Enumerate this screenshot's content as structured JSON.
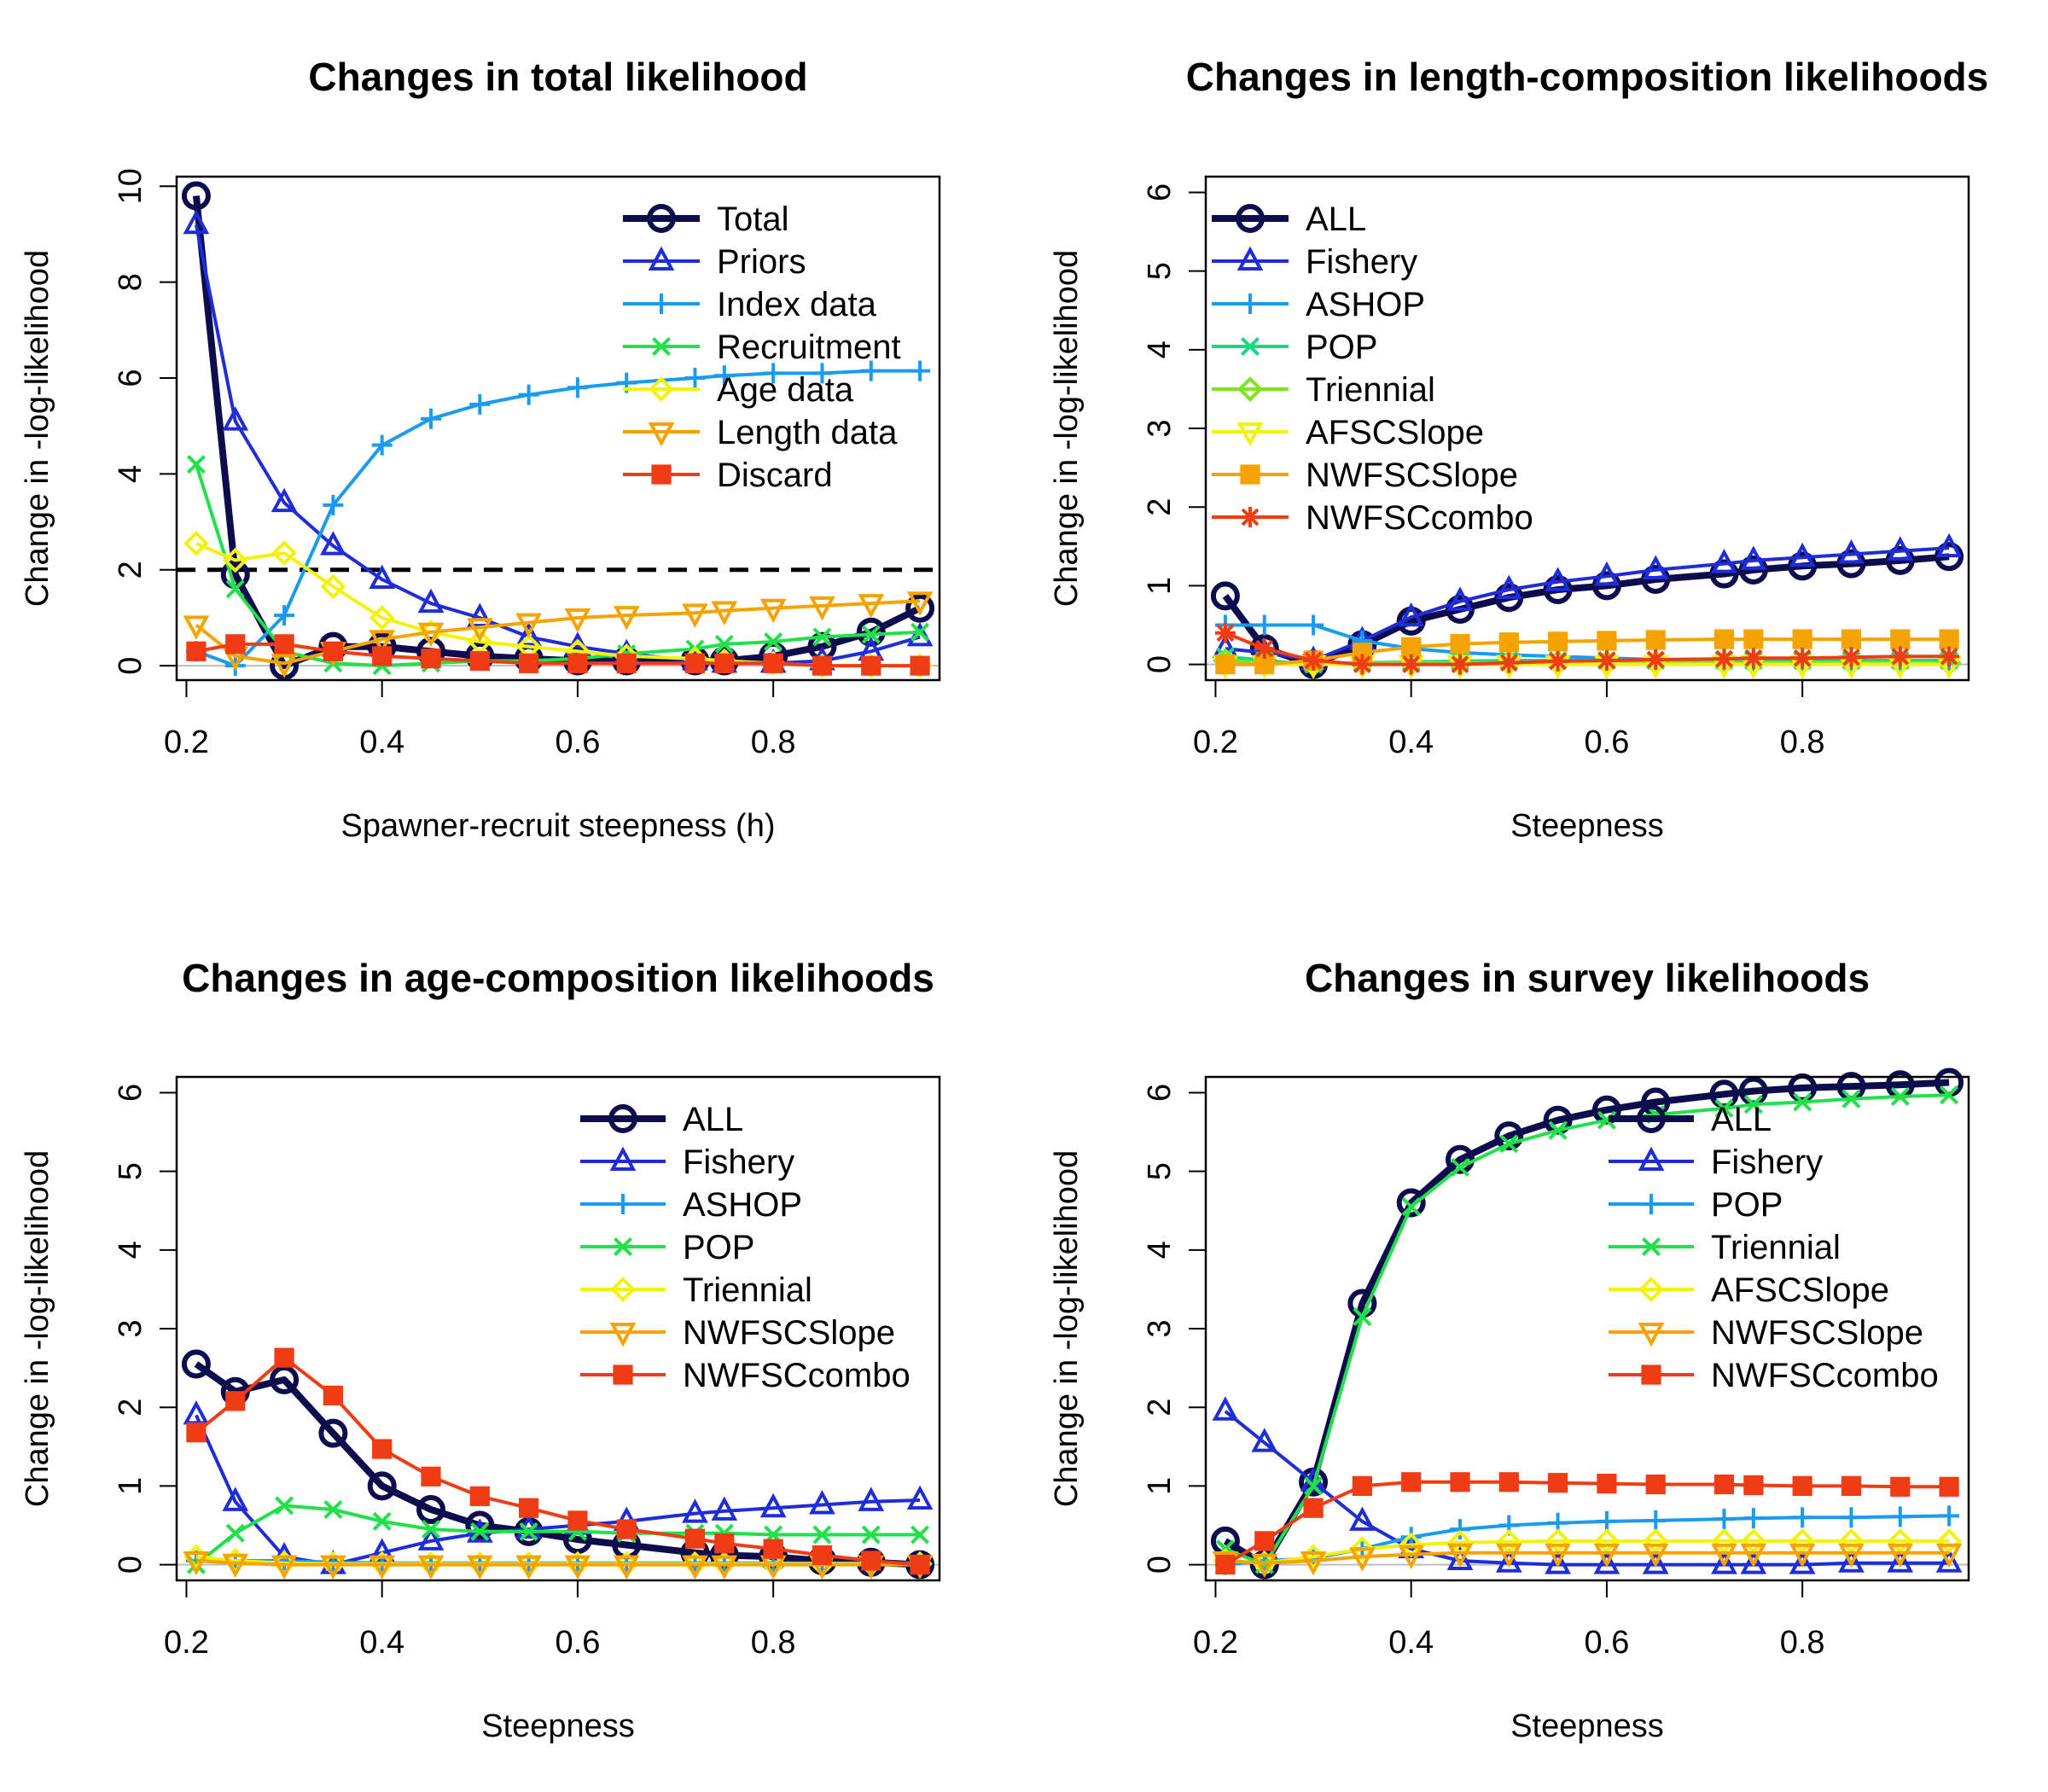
{
  "chart_data": [
    {
      "type": "line",
      "title": "Changes in total likelihood",
      "xlabel": "Spawner-recruit steepness (h)",
      "ylabel": "Change in -log-likelihood",
      "xlim": [
        0.19,
        0.97
      ],
      "ylim": [
        -0.3,
        10.2
      ],
      "xticks": [
        "0.2",
        "0.4",
        "0.6",
        "0.8"
      ],
      "yticks": [
        "0",
        "2",
        "4",
        "6",
        "8",
        "10"
      ],
      "legend_position": "top-right",
      "reference_line": 2,
      "x": [
        0.21,
        0.25,
        0.3,
        0.35,
        0.4,
        0.45,
        0.5,
        0.55,
        0.6,
        0.65,
        0.72,
        0.75,
        0.8,
        0.85,
        0.9,
        0.95
      ],
      "series": [
        {
          "name": "Total",
          "color": "#0d0d4d",
          "marker": "circle",
          "width": 8,
          "values": [
            9.8,
            1.9,
            0.0,
            0.4,
            0.4,
            0.3,
            0.2,
            0.15,
            0.1,
            0.1,
            0.1,
            0.1,
            0.2,
            0.4,
            0.7,
            1.2
          ]
        },
        {
          "name": "Priors",
          "color": "#1f2cd9",
          "marker": "triangle",
          "width": 4,
          "values": [
            9.2,
            5.1,
            3.4,
            2.5,
            1.8,
            1.3,
            1.0,
            0.6,
            0.4,
            0.25,
            0.1,
            0.05,
            0.05,
            0.1,
            0.3,
            0.6
          ]
        },
        {
          "name": "Index data",
          "color": "#1a9bf0",
          "marker": "plus",
          "width": 4,
          "values": [
            0.3,
            0.0,
            1.05,
            3.35,
            4.6,
            5.15,
            5.45,
            5.65,
            5.8,
            5.9,
            6.0,
            6.05,
            6.1,
            6.1,
            6.15,
            6.15
          ]
        },
        {
          "name": "Recruitment",
          "color": "#22e04a",
          "marker": "x",
          "width": 4,
          "values": [
            4.2,
            1.6,
            0.3,
            0.05,
            0.0,
            0.05,
            0.1,
            0.1,
            0.15,
            0.25,
            0.35,
            0.45,
            0.5,
            0.6,
            0.65,
            0.7
          ]
        },
        {
          "name": "Age data",
          "color": "#f2f20f",
          "marker": "diamond",
          "width": 4,
          "values": [
            2.55,
            2.2,
            2.35,
            1.65,
            1.0,
            0.7,
            0.5,
            0.4,
            0.3,
            0.2,
            0.15,
            0.1,
            0.05,
            0.0,
            0.0,
            0.0
          ]
        },
        {
          "name": "Length data",
          "color": "#f5a300",
          "marker": "triangle-down",
          "width": 4,
          "values": [
            0.85,
            0.2,
            0.05,
            0.3,
            0.55,
            0.7,
            0.8,
            0.9,
            1.0,
            1.05,
            1.1,
            1.15,
            1.2,
            1.25,
            1.3,
            1.35
          ]
        },
        {
          "name": "Discard",
          "color": "#f03c14",
          "marker": "square",
          "width": 4,
          "values": [
            0.3,
            0.45,
            0.45,
            0.3,
            0.2,
            0.15,
            0.1,
            0.05,
            0.05,
            0.05,
            0.05,
            0.05,
            0.05,
            0.0,
            0.0,
            0.0
          ]
        }
      ]
    },
    {
      "type": "line",
      "title": "Changes in length-composition likelihoods",
      "xlabel": "Steepness",
      "ylabel": "Change in -log-likelihood",
      "xlim": [
        0.19,
        0.97
      ],
      "ylim": [
        -0.2,
        6.2
      ],
      "xticks": [
        "0.2",
        "0.4",
        "0.6",
        "0.8"
      ],
      "yticks": [
        "0",
        "1",
        "2",
        "3",
        "4",
        "5",
        "6"
      ],
      "legend_position": "top-left",
      "x": [
        0.21,
        0.25,
        0.3,
        0.35,
        0.4,
        0.45,
        0.5,
        0.55,
        0.6,
        0.65,
        0.72,
        0.75,
        0.8,
        0.85,
        0.9,
        0.95
      ],
      "series": [
        {
          "name": "ALL",
          "color": "#0d0d4d",
          "marker": "circle",
          "width": 8,
          "values": [
            0.87,
            0.2,
            0.0,
            0.25,
            0.55,
            0.7,
            0.85,
            0.95,
            1.0,
            1.08,
            1.15,
            1.2,
            1.25,
            1.28,
            1.32,
            1.37
          ]
        },
        {
          "name": "Fishery",
          "color": "#1f2cd9",
          "marker": "triangle",
          "width": 4,
          "values": [
            0.2,
            0.15,
            0.05,
            0.3,
            0.6,
            0.8,
            0.95,
            1.05,
            1.12,
            1.2,
            1.28,
            1.32,
            1.36,
            1.4,
            1.44,
            1.48
          ]
        },
        {
          "name": "ASHOP",
          "color": "#1a9bf0",
          "marker": "plus",
          "width": 4,
          "values": [
            0.5,
            0.5,
            0.5,
            0.3,
            0.2,
            0.15,
            0.12,
            0.1,
            0.08,
            0.06,
            0.05,
            0.04,
            0.03,
            0.02,
            0.02,
            0.02
          ]
        },
        {
          "name": "POP",
          "color": "#17d982",
          "marker": "x",
          "width": 4,
          "values": [
            0.1,
            0.05,
            0.0,
            0.02,
            0.03,
            0.04,
            0.05,
            0.05,
            0.05,
            0.05,
            0.05,
            0.05,
            0.05,
            0.05,
            0.05,
            0.05
          ]
        },
        {
          "name": "Triennial",
          "color": "#7ee620",
          "marker": "diamond",
          "width": 4,
          "values": [
            0.05,
            0.02,
            0.0,
            0.01,
            0.02,
            0.02,
            0.02,
            0.02,
            0.02,
            0.02,
            0.02,
            0.02,
            0.02,
            0.02,
            0.02,
            0.02
          ]
        },
        {
          "name": "AFSCSlope",
          "color": "#f2f20f",
          "marker": "triangle-down",
          "width": 4,
          "values": [
            0.0,
            0.0,
            0.0,
            0.0,
            0.0,
            0.0,
            0.0,
            0.0,
            0.0,
            0.0,
            0.0,
            0.0,
            0.0,
            0.0,
            0.0,
            0.0
          ]
        },
        {
          "name": "NWFSCSlope",
          "color": "#f5a300",
          "marker": "square",
          "width": 4,
          "values": [
            0.0,
            0.0,
            0.05,
            0.15,
            0.22,
            0.26,
            0.28,
            0.29,
            0.3,
            0.31,
            0.32,
            0.32,
            0.32,
            0.32,
            0.32,
            0.32
          ]
        },
        {
          "name": "NWFSCcombo",
          "color": "#f03c14",
          "marker": "asterisk",
          "width": 4,
          "values": [
            0.4,
            0.2,
            0.05,
            0.0,
            0.0,
            0.0,
            0.02,
            0.04,
            0.05,
            0.06,
            0.07,
            0.08,
            0.08,
            0.09,
            0.1,
            0.1
          ]
        }
      ]
    },
    {
      "type": "line",
      "title": "Changes in age-composition likelihoods",
      "xlabel": "Steepness",
      "ylabel": "Change in -log-likelihood",
      "xlim": [
        0.19,
        0.97
      ],
      "ylim": [
        -0.2,
        6.2
      ],
      "xticks": [
        "0.2",
        "0.4",
        "0.6",
        "0.8"
      ],
      "yticks": [
        "0",
        "1",
        "2",
        "3",
        "4",
        "5",
        "6"
      ],
      "legend_position": "top-right",
      "x": [
        0.21,
        0.25,
        0.3,
        0.35,
        0.4,
        0.45,
        0.5,
        0.55,
        0.6,
        0.65,
        0.72,
        0.75,
        0.8,
        0.85,
        0.9,
        0.95
      ],
      "series": [
        {
          "name": "ALL",
          "color": "#0d0d4d",
          "marker": "circle",
          "width": 8,
          "values": [
            2.55,
            2.2,
            2.35,
            1.67,
            1.0,
            0.7,
            0.5,
            0.42,
            0.32,
            0.25,
            0.15,
            0.12,
            0.1,
            0.05,
            0.03,
            0.0
          ]
        },
        {
          "name": "Fishery",
          "color": "#1f2cd9",
          "marker": "triangle",
          "width": 4,
          "values": [
            1.9,
            0.8,
            0.1,
            0.0,
            0.15,
            0.3,
            0.4,
            0.45,
            0.5,
            0.55,
            0.65,
            0.68,
            0.72,
            0.76,
            0.8,
            0.82
          ]
        },
        {
          "name": "ASHOP",
          "color": "#1a9bf0",
          "marker": "plus",
          "width": 4,
          "values": [
            0.05,
            0.05,
            0.05,
            0.03,
            0.02,
            0.02,
            0.02,
            0.02,
            0.02,
            0.02,
            0.02,
            0.02,
            0.02,
            0.02,
            0.02,
            0.02
          ]
        },
        {
          "name": "POP",
          "color": "#22e04a",
          "marker": "x",
          "width": 4,
          "values": [
            0.0,
            0.4,
            0.75,
            0.7,
            0.55,
            0.45,
            0.42,
            0.42,
            0.42,
            0.4,
            0.4,
            0.4,
            0.38,
            0.38,
            0.38,
            0.38
          ]
        },
        {
          "name": "Triennial",
          "color": "#f2f20f",
          "marker": "diamond",
          "width": 4,
          "values": [
            0.1,
            0.05,
            0.02,
            0.01,
            0.01,
            0.01,
            0.01,
            0.01,
            0.01,
            0.01,
            0.01,
            0.01,
            0.01,
            0.01,
            0.01,
            0.01
          ]
        },
        {
          "name": "NWFSCSlope",
          "color": "#f5a300",
          "marker": "triangle-down",
          "width": 4,
          "values": [
            0.05,
            0.02,
            0.0,
            0.0,
            0.0,
            0.0,
            0.0,
            0.0,
            0.0,
            0.0,
            0.0,
            0.0,
            0.0,
            0.0,
            0.0,
            0.0
          ]
        },
        {
          "name": "NWFSCcombo",
          "color": "#f03c14",
          "marker": "square",
          "width": 4,
          "values": [
            1.68,
            2.08,
            2.63,
            2.15,
            1.47,
            1.12,
            0.87,
            0.72,
            0.56,
            0.45,
            0.33,
            0.27,
            0.2,
            0.12,
            0.05,
            0.0
          ]
        }
      ]
    },
    {
      "type": "line",
      "title": "Changes in survey likelihoods",
      "xlabel": "Steepness",
      "ylabel": "Change in -log-likelihood",
      "xlim": [
        0.19,
        0.97
      ],
      "ylim": [
        -0.2,
        6.2
      ],
      "xticks": [
        "0.2",
        "0.4",
        "0.6",
        "0.8"
      ],
      "yticks": [
        "0",
        "1",
        "2",
        "3",
        "4",
        "5",
        "6"
      ],
      "legend_position": "top-right",
      "x": [
        0.21,
        0.25,
        0.3,
        0.35,
        0.4,
        0.45,
        0.5,
        0.55,
        0.6,
        0.65,
        0.72,
        0.75,
        0.8,
        0.85,
        0.9,
        0.95
      ],
      "series": [
        {
          "name": "ALL",
          "color": "#0d0d4d",
          "marker": "circle",
          "width": 8,
          "values": [
            0.3,
            0.0,
            1.05,
            3.32,
            4.6,
            5.15,
            5.45,
            5.65,
            5.78,
            5.88,
            5.98,
            6.02,
            6.06,
            6.08,
            6.1,
            6.13
          ]
        },
        {
          "name": "Fishery",
          "color": "#1f2cd9",
          "marker": "triangle",
          "width": 4,
          "values": [
            1.95,
            1.55,
            1.05,
            0.55,
            0.2,
            0.05,
            0.02,
            0.0,
            0.0,
            0.0,
            0.0,
            0.0,
            0.0,
            0.02,
            0.02,
            0.02
          ]
        },
        {
          "name": "POP",
          "color": "#1a9bf0",
          "marker": "plus",
          "width": 4,
          "values": [
            0.0,
            0.05,
            0.08,
            0.2,
            0.35,
            0.45,
            0.5,
            0.53,
            0.55,
            0.56,
            0.58,
            0.59,
            0.6,
            0.6,
            0.61,
            0.62
          ]
        },
        {
          "name": "Triennial",
          "color": "#22e04a",
          "marker": "x",
          "width": 4,
          "values": [
            0.2,
            0.0,
            1.0,
            3.15,
            4.55,
            5.05,
            5.35,
            5.52,
            5.65,
            5.72,
            5.8,
            5.85,
            5.88,
            5.92,
            5.95,
            5.97
          ]
        },
        {
          "name": "AFSCSlope",
          "color": "#f2f20f",
          "marker": "diamond",
          "width": 4,
          "values": [
            0.05,
            0.02,
            0.1,
            0.2,
            0.25,
            0.28,
            0.29,
            0.3,
            0.3,
            0.3,
            0.3,
            0.3,
            0.3,
            0.3,
            0.3,
            0.3
          ]
        },
        {
          "name": "NWFSCSlope",
          "color": "#f5a300",
          "marker": "triangle-down",
          "width": 4,
          "values": [
            0.05,
            0.02,
            0.05,
            0.1,
            0.13,
            0.15,
            0.15,
            0.15,
            0.15,
            0.15,
            0.15,
            0.15,
            0.15,
            0.15,
            0.15,
            0.15
          ]
        },
        {
          "name": "NWFSCcombo",
          "color": "#f03c14",
          "marker": "square",
          "width": 4,
          "values": [
            0.0,
            0.3,
            0.72,
            1.0,
            1.05,
            1.05,
            1.05,
            1.04,
            1.03,
            1.02,
            1.02,
            1.01,
            1.0,
            1.0,
            0.99,
            0.99
          ]
        }
      ]
    }
  ]
}
